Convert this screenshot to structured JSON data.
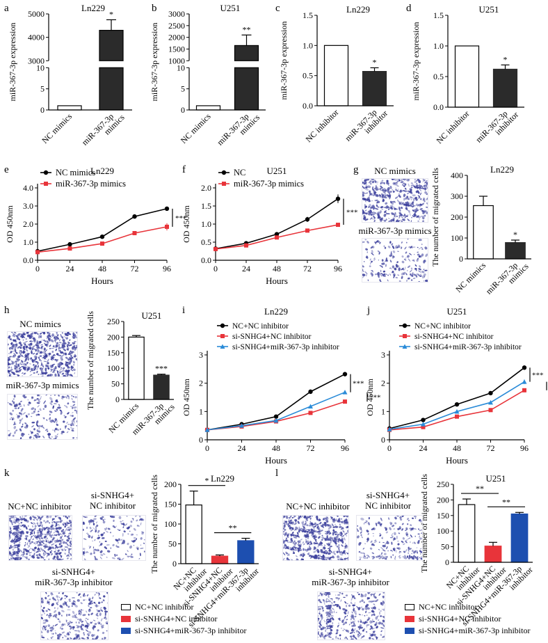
{
  "colors": {
    "black": "#000000",
    "red": "#e8343a",
    "blue": "#2a8bd8",
    "dark_bar": "#2b2b2b",
    "navy_bar": "#1d4fb0",
    "stain": "#3b3f9c"
  },
  "panel_labels": [
    "a",
    "b",
    "c",
    "d",
    "e",
    "f",
    "g",
    "h",
    "i",
    "j",
    "k",
    "l"
  ],
  "micro_captions": {
    "g_top": "NC mimics",
    "g_bottom": "miR-367-3p mimics",
    "h_top": "NC mimics",
    "h_bottom": "miR-367-3p mimics",
    "k_1": "NC+NC inhibitor",
    "k_2": "si-SNHG4+\nNC inhibitor",
    "k_3": "si-SNHG4+\nmiR-367-3p inhibitor",
    "l_1": "NC+NC inhibitor",
    "l_2": "si-SNHG4+\nNC inhibitor",
    "l_3": "si-SNHG4+\nmiR-367-3p inhibitor"
  },
  "legends": {
    "k": [
      "NC+NC inhibitor",
      "si-SNHG4+NC inhibitor",
      "si-SNHG4+miR-367-3p inhibitor"
    ],
    "l": [
      "NC+NC inhibitor",
      "si-SNHG4+NC inhibitor",
      "si-SNHG4+miR-367-3p inhibitor"
    ]
  },
  "chart_data": [
    {
      "id": "a",
      "type": "bar",
      "title": "Ln229",
      "ylabel": "miR-367-3p expression",
      "categories": [
        "NC mimics",
        "miR-367-3p mimics"
      ],
      "values": [
        1,
        4300
      ],
      "errors": [
        0,
        450
      ],
      "bar_colors": [
        "#ffffff",
        "#2b2b2b"
      ],
      "axis_break": {
        "lower": [
          0,
          10
        ],
        "upper": [
          3000,
          5000
        ]
      },
      "yticks_lower": [
        0,
        5,
        10
      ],
      "yticks_upper": [
        3000,
        4000,
        5000
      ],
      "yticks_lower_labels": [
        "0",
        "5",
        "10"
      ],
      "yticks_upper_labels": [
        "3000",
        "4000",
        "5000"
      ],
      "significance": [
        "",
        "*"
      ]
    },
    {
      "id": "b",
      "type": "bar",
      "title": "U251",
      "ylabel": "miR-367-3p expression",
      "categories": [
        "NC mimics",
        "miR-367-3p mimics"
      ],
      "values": [
        1,
        1650
      ],
      "errors": [
        0,
        450
      ],
      "bar_colors": [
        "#ffffff",
        "#2b2b2b"
      ],
      "axis_break": {
        "lower": [
          0,
          10
        ],
        "upper": [
          1000,
          3000
        ]
      },
      "yticks_lower": [
        0,
        5,
        10
      ],
      "yticks_upper": [
        1000,
        1500,
        2000,
        2500,
        3000
      ],
      "yticks_lower_labels": [
        "0",
        "5",
        "10"
      ],
      "yticks_upper_labels": [
        "1000",
        "1500",
        "2000",
        "2500",
        "3000"
      ],
      "significance": [
        "",
        "**"
      ]
    },
    {
      "id": "c",
      "type": "bar",
      "title": "Ln229",
      "ylabel": "miR-367-3p expression",
      "categories": [
        "NC inhibitor",
        "miR-367-3p inhibitor"
      ],
      "values": [
        1.0,
        0.57
      ],
      "errors": [
        0,
        0.06
      ],
      "bar_colors": [
        "#ffffff",
        "#2b2b2b"
      ],
      "ylim": [
        0,
        1.5
      ],
      "yticks": [
        0.0,
        0.5,
        1.0,
        1.5
      ],
      "ytick_labels": [
        "0.0",
        "0.5",
        "1.0",
        "1.5"
      ],
      "significance": [
        "",
        "*"
      ]
    },
    {
      "id": "d",
      "type": "bar",
      "title": "U251",
      "ylabel": "miR-367-3p expression",
      "categories": [
        "NC inhibitor",
        "miR-367-3p inhibitor"
      ],
      "values": [
        1.0,
        0.62
      ],
      "errors": [
        0,
        0.07
      ],
      "bar_colors": [
        "#ffffff",
        "#2b2b2b"
      ],
      "ylim": [
        0,
        1.5
      ],
      "yticks": [
        0.0,
        0.5,
        1.0,
        1.5
      ],
      "ytick_labels": [
        "0.0",
        "0.5",
        "1.0",
        "1.5"
      ],
      "significance": [
        "",
        "*"
      ]
    },
    {
      "id": "e",
      "type": "line",
      "title": "Ln229",
      "xlabel": "Hours",
      "ylabel": "OD 450nm",
      "x": [
        0,
        24,
        48,
        72,
        96
      ],
      "xlim": [
        0,
        96
      ],
      "ylim": [
        0,
        4.0
      ],
      "yticks": [
        0,
        1,
        2,
        3,
        4
      ],
      "ytick_labels": [
        "0.0",
        "1.0",
        "2.0",
        "3.0",
        "4.0"
      ],
      "series": [
        {
          "name": "NC mimics",
          "values": [
            0.5,
            0.88,
            1.3,
            2.42,
            2.85
          ],
          "errors": [
            0.03,
            0.05,
            0.1,
            0.08,
            0.12
          ],
          "color": "#000000"
        },
        {
          "name": "miR-367-3p mimics",
          "values": [
            0.45,
            0.65,
            0.92,
            1.5,
            1.85
          ],
          "errors": [
            0.03,
            0.05,
            0.08,
            0.07,
            0.2
          ],
          "color": "#e8343a"
        }
      ],
      "legend": "top-left",
      "significance": "***"
    },
    {
      "id": "f",
      "type": "line",
      "title": "U251",
      "xlabel": "Hours",
      "ylabel": "OD 450nm",
      "x": [
        0,
        24,
        48,
        72,
        96
      ],
      "xlim": [
        0,
        96
      ],
      "ylim": [
        0,
        2.0
      ],
      "yticks": [
        0,
        0.5,
        1.0,
        1.5,
        2.0
      ],
      "ytick_labels": [
        "0.0",
        "0.5",
        "1.0",
        "1.5",
        "2.0"
      ],
      "series": [
        {
          "name": "NC",
          "values": [
            0.32,
            0.47,
            0.72,
            1.13,
            1.7
          ],
          "errors": [
            0.02,
            0.03,
            0.04,
            0.07,
            0.12
          ],
          "color": "#000000"
        },
        {
          "name": "miR-367-3p mimics",
          "values": [
            0.31,
            0.41,
            0.63,
            0.82,
            0.98
          ],
          "errors": [
            0.02,
            0.03,
            0.03,
            0.03,
            0.04
          ],
          "color": "#e8343a"
        }
      ],
      "legend": "top-left",
      "significance": "***"
    },
    {
      "id": "g",
      "type": "bar",
      "title": "Ln229",
      "ylabel": "The number of migrated cells",
      "categories": [
        "NC mimics",
        "miR-367-3p mimics"
      ],
      "values": [
        255,
        78
      ],
      "errors": [
        45,
        12
      ],
      "bar_colors": [
        "#ffffff",
        "#2b2b2b"
      ],
      "ylim": [
        0,
        400
      ],
      "yticks": [
        0,
        100,
        200,
        300,
        400
      ],
      "ytick_labels": [
        "0",
        "100",
        "200",
        "300",
        "400"
      ],
      "significance": [
        "",
        "*"
      ]
    },
    {
      "id": "h",
      "type": "bar",
      "title": "U251",
      "ylabel": "The number of migrated cells",
      "categories": [
        "NC mimics",
        "miR-367-3p mimics"
      ],
      "values": [
        200,
        78
      ],
      "errors": [
        5,
        3
      ],
      "bar_colors": [
        "#ffffff",
        "#2b2b2b"
      ],
      "ylim": [
        0,
        250
      ],
      "yticks": [
        0,
        50,
        100,
        150,
        200,
        250
      ],
      "ytick_labels": [
        "0",
        "50",
        "100",
        "150",
        "200",
        "250"
      ],
      "significance": [
        "",
        "***"
      ]
    },
    {
      "id": "i",
      "type": "line",
      "title": "Ln229",
      "xlabel": "Hours",
      "ylabel": "OD 450nm",
      "x": [
        0,
        24,
        48,
        72,
        96
      ],
      "xlim": [
        0,
        96
      ],
      "ylim": [
        0,
        3
      ],
      "yticks": [
        0,
        1,
        2,
        3
      ],
      "ytick_labels": [
        "0",
        "1",
        "2",
        "3"
      ],
      "series": [
        {
          "name": "NC+NC inhibitor",
          "values": [
            0.35,
            0.55,
            0.82,
            1.7,
            2.32
          ],
          "errors": [
            0.02,
            0.03,
            0.04,
            0.05,
            0.08
          ],
          "color": "#000000"
        },
        {
          "name": "si-SNHG4+NC inhibitor",
          "values": [
            0.35,
            0.47,
            0.65,
            0.95,
            1.35
          ],
          "errors": [
            0.02,
            0.02,
            0.03,
            0.04,
            0.05
          ],
          "color": "#e8343a"
        },
        {
          "name": "si-SNHG4+miR-367-3p inhibitor",
          "values": [
            0.35,
            0.5,
            0.68,
            1.18,
            1.68
          ],
          "errors": [
            0.02,
            0.02,
            0.03,
            0.04,
            0.06
          ],
          "color": "#2a8bd8"
        }
      ],
      "legend": "top-left",
      "significance": [
        "***",
        "***"
      ]
    },
    {
      "id": "j",
      "type": "line",
      "title": "U251",
      "xlabel": "Hours",
      "ylabel": "OD 450nm",
      "x": [
        0,
        24,
        48,
        72,
        96
      ],
      "xlim": [
        0,
        96
      ],
      "ylim": [
        0,
        3
      ],
      "yticks": [
        0,
        1,
        2,
        3
      ],
      "ytick_labels": [
        "0",
        "1",
        "2",
        "3"
      ],
      "series": [
        {
          "name": "NC+NC inhibitor",
          "values": [
            0.4,
            0.7,
            1.25,
            1.65,
            2.55
          ],
          "errors": [
            0.03,
            0.04,
            0.06,
            0.06,
            0.08
          ],
          "color": "#000000"
        },
        {
          "name": "si-SNHG4+NC inhibitor",
          "values": [
            0.35,
            0.45,
            0.82,
            1.05,
            1.75
          ],
          "errors": [
            0.02,
            0.03,
            0.04,
            0.05,
            0.07
          ],
          "color": "#e8343a"
        },
        {
          "name": "si-SNHG4+miR-367-3p inhibitor",
          "values": [
            0.37,
            0.55,
            1.0,
            1.32,
            2.05
          ],
          "errors": [
            0.02,
            0.03,
            0.05,
            0.06,
            0.08
          ],
          "color": "#2a8bd8"
        }
      ],
      "legend": "top-left",
      "significance": [
        "***",
        "***"
      ]
    },
    {
      "id": "k",
      "type": "bar",
      "title": "Ln229",
      "ylabel": "The number of migrated cells",
      "categories": [
        "NC+NC inhibitor",
        "si-SNHG4+NC inhibitor",
        "si-SNHG4+miR-367-3p inhibitor"
      ],
      "values": [
        148,
        19,
        58
      ],
      "errors": [
        35,
        3,
        6
      ],
      "bar_colors": [
        "#ffffff",
        "#e8343a",
        "#1d4fb0"
      ],
      "ylim": [
        0,
        200
      ],
      "yticks": [
        0,
        50,
        100,
        150,
        200
      ],
      "ytick_labels": [
        "0",
        "50",
        "100",
        "150",
        "200"
      ],
      "brackets": [
        {
          "from": 0,
          "to": 1,
          "label": "*"
        },
        {
          "from": 1,
          "to": 2,
          "label": "**"
        }
      ]
    },
    {
      "id": "l",
      "type": "bar",
      "title": "U251",
      "ylabel": "The number of migrated cells",
      "categories": [
        "NC+NC inhibitor",
        "si-SNHG4+NC inhibitor",
        "si-SNHG4+miR-367-3p inhibitor"
      ],
      "values": [
        185,
        52,
        155
      ],
      "errors": [
        18,
        12,
        5
      ],
      "bar_colors": [
        "#ffffff",
        "#e8343a",
        "#1d4fb0"
      ],
      "ylim": [
        0,
        250
      ],
      "yticks": [
        0,
        50,
        100,
        150,
        200,
        250
      ],
      "ytick_labels": [
        "0",
        "50",
        "100",
        "150",
        "200",
        "250"
      ],
      "brackets": [
        {
          "from": 0,
          "to": 1,
          "label": "**"
        },
        {
          "from": 1,
          "to": 2,
          "label": "**"
        }
      ]
    }
  ]
}
